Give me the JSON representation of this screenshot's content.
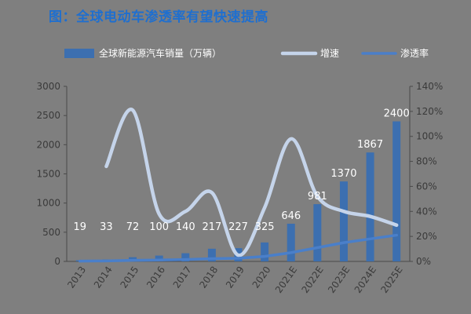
{
  "title": "图：全球电动车渗透率有望快速提高",
  "chart_data": {
    "type": "bar",
    "title": "图：全球电动车渗透率有望快速提高",
    "categories": [
      "2013",
      "2014",
      "2015",
      "2016",
      "2017",
      "2018",
      "2019",
      "2020",
      "2021E",
      "2022E",
      "2023E",
      "2024E",
      "2025E"
    ],
    "series": [
      {
        "name": "全球新能源汽车销量（万辆）",
        "type": "bar",
        "axis": "left",
        "values": [
          19,
          33,
          72,
          100,
          140,
          217,
          227,
          325,
          646,
          981,
          1370,
          1867,
          2400
        ],
        "data_labels": [
          "19",
          "33",
          "72",
          "100",
          "140",
          "217",
          "227",
          "325",
          "646",
          "981",
          "1370",
          "1867",
          "2400"
        ]
      },
      {
        "name": "增速",
        "type": "line",
        "axis": "right",
        "smooth": true,
        "values": [
          null,
          0.76,
          1.21,
          0.38,
          0.4,
          0.55,
          0.05,
          0.43,
          0.98,
          0.52,
          0.4,
          0.36,
          0.29
        ]
      },
      {
        "name": "渗透率",
        "type": "line",
        "axis": "right",
        "values": [
          0.002,
          0.004,
          0.009,
          0.011,
          0.015,
          0.022,
          0.025,
          0.04,
          0.07,
          0.11,
          0.15,
          0.18,
          0.21
        ]
      }
    ],
    "y_left": {
      "ylim": [
        0,
        3000
      ],
      "ticks": [
        0,
        500,
        1000,
        1500,
        2000,
        2500,
        3000
      ]
    },
    "y_right": {
      "ylim": [
        0,
        1.4
      ],
      "ticks": [
        "0%",
        "20%",
        "40%",
        "60%",
        "80%",
        "100%",
        "120%",
        "140%"
      ]
    },
    "colors": {
      "bar": "#3c6fb0",
      "growth": "#c5d4ea",
      "penetration": "#4a7fc9",
      "title": "#1f6fcf"
    },
    "legend_position": "top",
    "grid": false
  }
}
